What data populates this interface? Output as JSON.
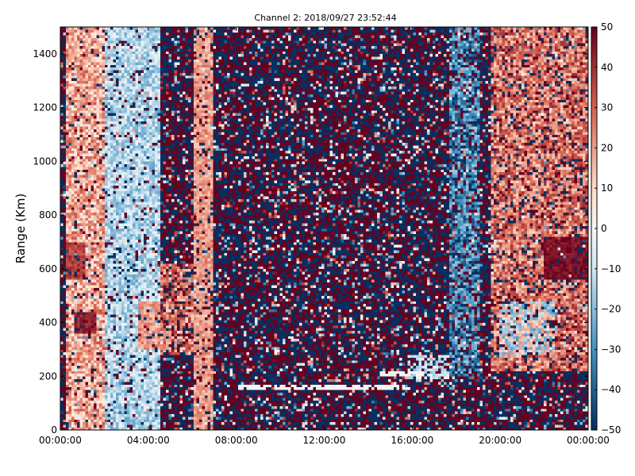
{
  "chart_data": {
    "type": "heatmap",
    "title": "Channel 2: 2018/09/27 23:52:44",
    "xlabel": "",
    "ylabel": "Range (Km)",
    "x_ticks": [
      "00:00:00",
      "04:00:00",
      "08:00:00",
      "12:00:00",
      "16:00:00",
      "20:00:00",
      "00:00:00"
    ],
    "x_range_hours": [
      0,
      24
    ],
    "y_ticks": [
      0,
      200,
      400,
      600,
      800,
      1000,
      1200,
      1400
    ],
    "ylim": [
      0,
      1500
    ],
    "colorbar": {
      "ticks": [
        50,
        40,
        30,
        20,
        10,
        0,
        -10,
        -20,
        -30,
        -40,
        -50
      ],
      "range": [
        -50,
        50
      ],
      "colors": {
        "neg_dark": "#053061",
        "neg_mid": "#4393c3",
        "neg_light": "#d1e5f0",
        "zero": "#f7f7f7",
        "pos_light": "#fddbc7",
        "pos_mid": "#d6604d",
        "pos_dark": "#67001f"
      }
    },
    "grid": false,
    "legend": "none"
  }
}
